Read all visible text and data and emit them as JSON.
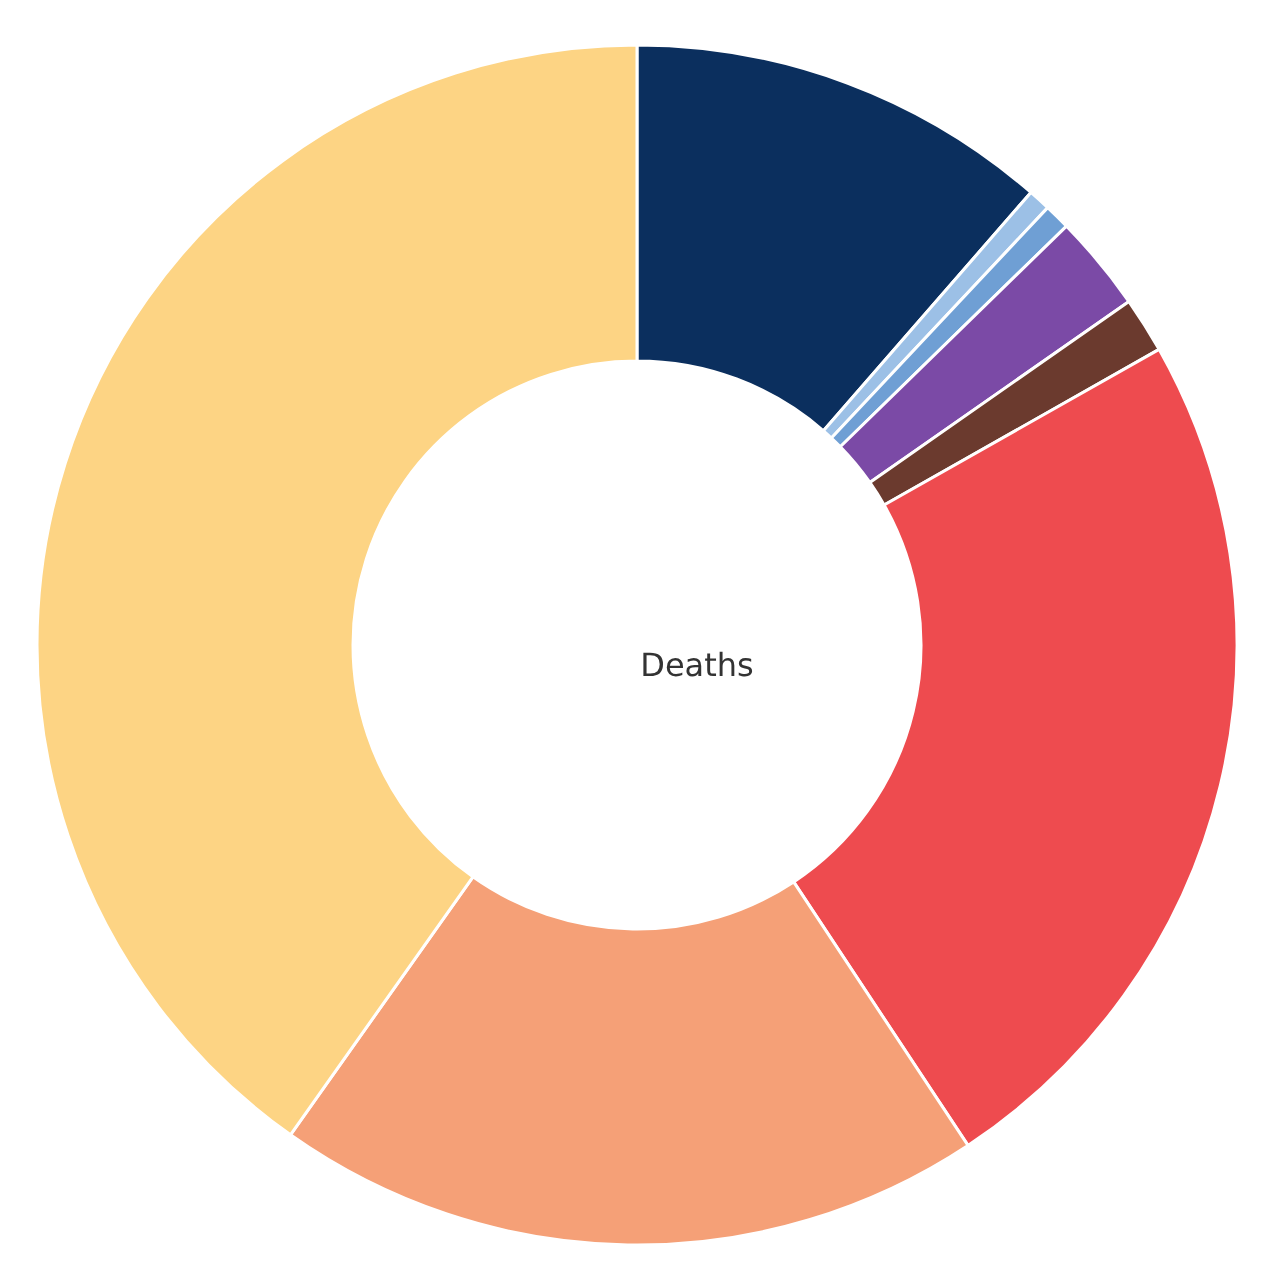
{
  "chart_data": {
    "type": "donut",
    "categories": [
      null,
      null,
      null,
      null,
      null,
      null,
      null,
      null
    ],
    "values": [
      11.4,
      0.6,
      0.7,
      2.6,
      1.5,
      23.9,
      19.1,
      40.2
    ],
    "colors": [
      "#0b2f5e",
      "#9cc0e6",
      "#6f9fd4",
      "#7b4aa6",
      "#6b3a2e",
      "#ee4b4f",
      "#f5a077",
      "#fdd484"
    ],
    "annotations": [
      "Deaths"
    ]
  }
}
